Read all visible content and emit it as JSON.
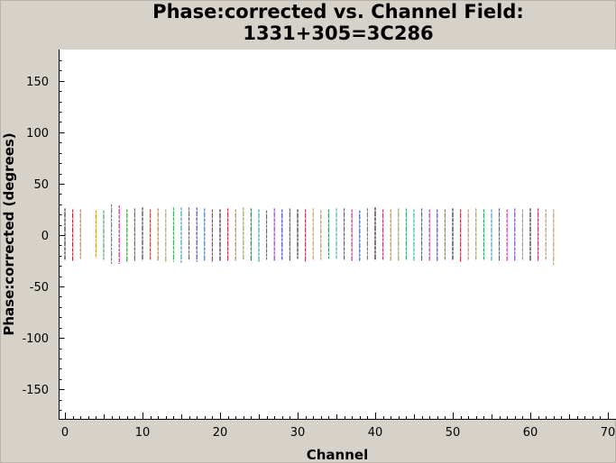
{
  "chart_data": {
    "type": "scatter",
    "title_line1": "Phase:corrected vs. Channel Field:",
    "title_line2": "1331+305=3C286",
    "xlabel": "Channel",
    "ylabel": "Phase:corrected (degrees)",
    "xlim": [
      -0.8,
      70.5
    ],
    "ylim": [
      -180,
      180
    ],
    "xticks": [
      0,
      10,
      20,
      30,
      40,
      50,
      60,
      70
    ],
    "yticks": [
      -150,
      -100,
      -50,
      0,
      50,
      100,
      150
    ],
    "grid": false,
    "background": "#ffffff",
    "series": [
      {
        "channels": [
          0,
          1,
          2,
          4,
          5,
          6,
          7,
          8,
          9,
          10,
          11,
          12,
          13,
          14,
          15,
          16,
          17,
          18,
          19,
          20,
          21,
          22,
          23,
          24,
          25,
          26,
          27,
          28,
          29,
          30,
          31,
          32,
          33,
          34,
          35,
          36,
          37,
          38,
          39,
          40,
          41,
          42,
          43,
          44,
          45,
          46,
          47,
          48,
          49,
          50,
          51,
          52,
          53,
          54,
          55,
          56,
          57,
          58,
          59,
          60,
          61,
          62,
          63
        ],
        "y_min": [
          -24,
          -25,
          -23,
          -22,
          -24,
          -28,
          -28,
          -26,
          -26,
          -25,
          -24,
          -25,
          -26,
          -26,
          -27,
          -25,
          -26,
          -25,
          -26,
          -25,
          -25,
          -25,
          -24,
          -25,
          -26,
          -24,
          -25,
          -24,
          -25,
          -23,
          -26,
          -24,
          -24,
          -23,
          -23,
          -24,
          -25,
          -25,
          -24,
          -24,
          -24,
          -25,
          -25,
          -24,
          -25,
          -25,
          -25,
          -25,
          -24,
          -24,
          -26,
          -24,
          -24,
          -24,
          -25,
          -25,
          -25,
          -25,
          -24,
          -25,
          -26,
          -24,
          -29
        ],
        "y_max": [
          26,
          25,
          25,
          24,
          24,
          30,
          29,
          25,
          26,
          27,
          25,
          26,
          25,
          27,
          27,
          27,
          27,
          26,
          25,
          25,
          26,
          25,
          27,
          26,
          25,
          24,
          26,
          25,
          26,
          25,
          25,
          26,
          24,
          25,
          26,
          26,
          25,
          24,
          26,
          27,
          25,
          25,
          26,
          26,
          25,
          26,
          25,
          25,
          25,
          26,
          25,
          25,
          26,
          25,
          25,
          26,
          25,
          26,
          25,
          26,
          26,
          25,
          25
        ],
        "colors": [
          "#1f1f1f",
          "#b8222b",
          "#bf7a1c",
          "#c9961a",
          "#2a9e6a",
          "#2a8fb5",
          "#c0267a",
          "#3a8a1e",
          "#6b3fb5",
          "#2a2a2a",
          "#c0392b",
          "#c97d1e",
          "#b5a21a",
          "#3aaa5a",
          "#2a9eb5",
          "#c02a8a",
          "#4a3fb5",
          "#2a6ab5",
          "#b52a4a",
          "#1a1a1a",
          "#c0262e",
          "#b88a1c",
          "#8aa51a",
          "#2a7a3a",
          "#2a9e9e",
          "#2a6ec0",
          "#8a2ab5",
          "#2a3ab5",
          "#7a4a1a",
          "#2a1a1a",
          "#b52a3a",
          "#c9a01a",
          "#9aa51a",
          "#2a9a4a",
          "#2ab5a5",
          "#2a5ac0",
          "#b52a7a",
          "#2a4ab5",
          "#b5652a",
          "#0a0a0a",
          "#c02a5a",
          "#c0881c",
          "#9a9a1a",
          "#2aa56a",
          "#2aa5b5",
          "#2a6ac5",
          "#b52a9a",
          "#3a3ab5",
          "#b56a2a",
          "#1a1a1a",
          "#c0262e",
          "#c9921a",
          "#8aaa1a",
          "#2aa55a",
          "#2a9ec0",
          "#4a4ac0",
          "#c02a8a",
          "#6a3ab5",
          "#c07a9a",
          "#1a1a1a",
          "#b52a5a",
          "#b89a1a",
          "#c9a01a"
        ]
      }
    ]
  }
}
